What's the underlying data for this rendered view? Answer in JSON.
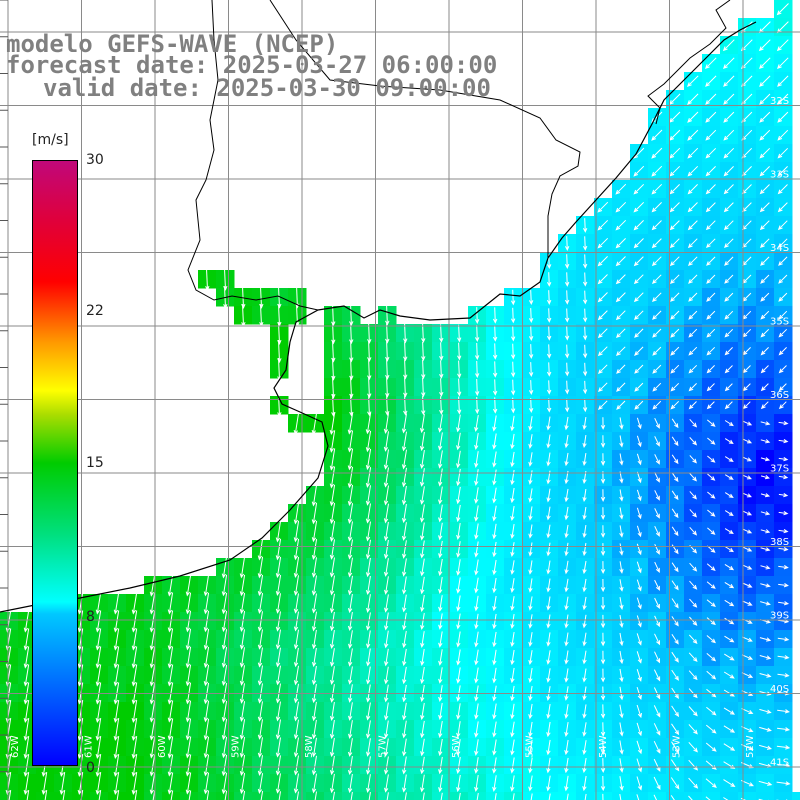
{
  "title": {
    "line1": "modelo GEFS-WAVE (NCEP)",
    "line2": "forecast date: 2025-03-27 06:00:00",
    "line3": "valid date: 2025-03-30 09:00:00"
  },
  "colorbar": {
    "unit": "[m/s]",
    "ticks": [
      "30",
      "22",
      "15",
      "8",
      "0"
    ],
    "stops": [
      "#0000ff",
      "#00c8ff",
      "#00ffff",
      "#00e080",
      "#00cc00",
      "#ffff00",
      "#ff0000",
      "#c0087a"
    ]
  },
  "map": {
    "lat_labels": [
      "32S",
      "33S",
      "34S",
      "35S",
      "36S",
      "37S",
      "38S",
      "39S",
      "40S",
      "41S"
    ],
    "lon_labels": [
      "62W",
      "61W",
      "60W",
      "59W",
      "58W",
      "57W",
      "56W",
      "55W",
      "54W",
      "53W",
      "52W",
      "51W"
    ],
    "land_color": "#ffffff",
    "coast_color": "#000000",
    "grid_color": "#8a8a8a",
    "arrow_color": "#ffffff"
  }
}
